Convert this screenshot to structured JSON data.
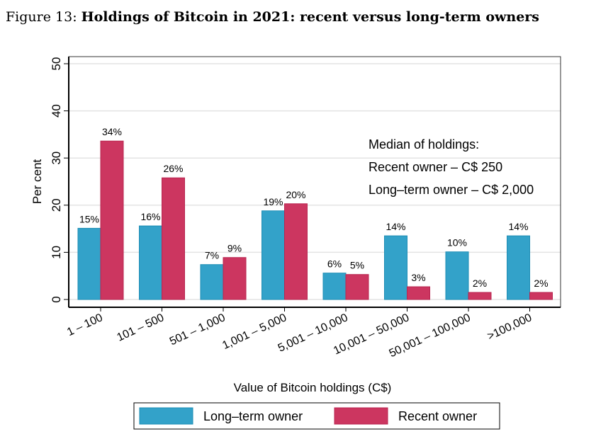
{
  "figure_label": "Figure 13:",
  "figure_title": "Holdings of Bitcoin in 2021: recent versus long-term owners",
  "chart_data": {
    "type": "bar",
    "xlabel": "Value of Bitcoin holdings (C$)",
    "ylabel": "Per cent",
    "ylim": [
      0,
      50
    ],
    "yticks": [
      0,
      10,
      20,
      30,
      40,
      50
    ],
    "grid": true,
    "legend_placement": "bottom",
    "categories": [
      "1 – 100",
      "101 – 500",
      "501 – 1,000",
      "1,001 – 5,000",
      "5,001 – 10,000",
      "10,001 – 50,000",
      "50,001 – 100,000",
      ">100,000"
    ],
    "series": [
      {
        "name": "Long–term owner",
        "color": "#33a2c9",
        "values": [
          15.1,
          15.6,
          7.4,
          18.8,
          5.6,
          13.5,
          10.1,
          13.5
        ],
        "labels": [
          "15%",
          "16%",
          "7%",
          "19%",
          "6%",
          "14%",
          "10%",
          "14%"
        ]
      },
      {
        "name": "Recent owner",
        "color": "#cc3660",
        "values": [
          33.6,
          25.8,
          8.9,
          20.3,
          5.3,
          2.7,
          1.5,
          1.5
        ],
        "labels": [
          "34%",
          "26%",
          "9%",
          "20%",
          "5%",
          "3%",
          "2%",
          "2%"
        ]
      }
    ],
    "annotation": [
      "Median of holdings:",
      "Recent owner – C$ 250",
      "Long–term owner – C$ 2,000"
    ]
  }
}
